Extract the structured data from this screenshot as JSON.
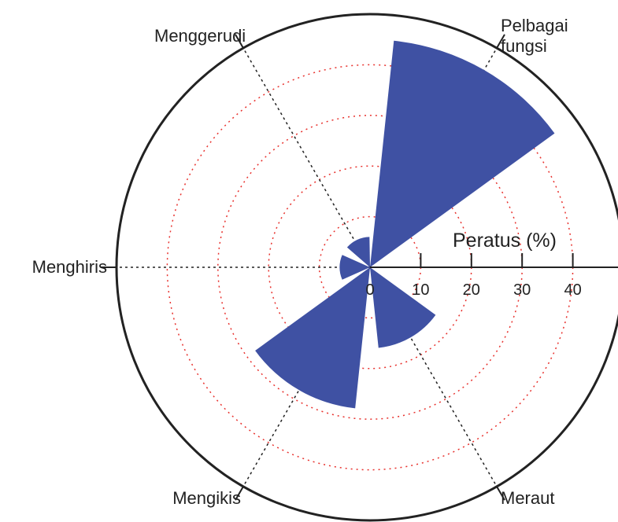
{
  "chart_data": {
    "type": "polar-bar",
    "categories": [
      "Menggerudi",
      "Pelbagai fungsi",
      "Meraut",
      "Mengikis",
      "Menghiris"
    ],
    "theta": [
      335,
      30,
      150,
      210,
      270
    ],
    "bar_width": 48,
    "values": [
      6,
      45,
      16,
      28,
      6
    ],
    "color": "#3f51a3",
    "rlim": [
      0,
      50
    ],
    "rticks": [
      0,
      10,
      20,
      30,
      40
    ],
    "r_label": "Peratus (%)",
    "axis_angles": [
      330,
      30,
      150,
      210,
      270
    ],
    "grid": true
  }
}
